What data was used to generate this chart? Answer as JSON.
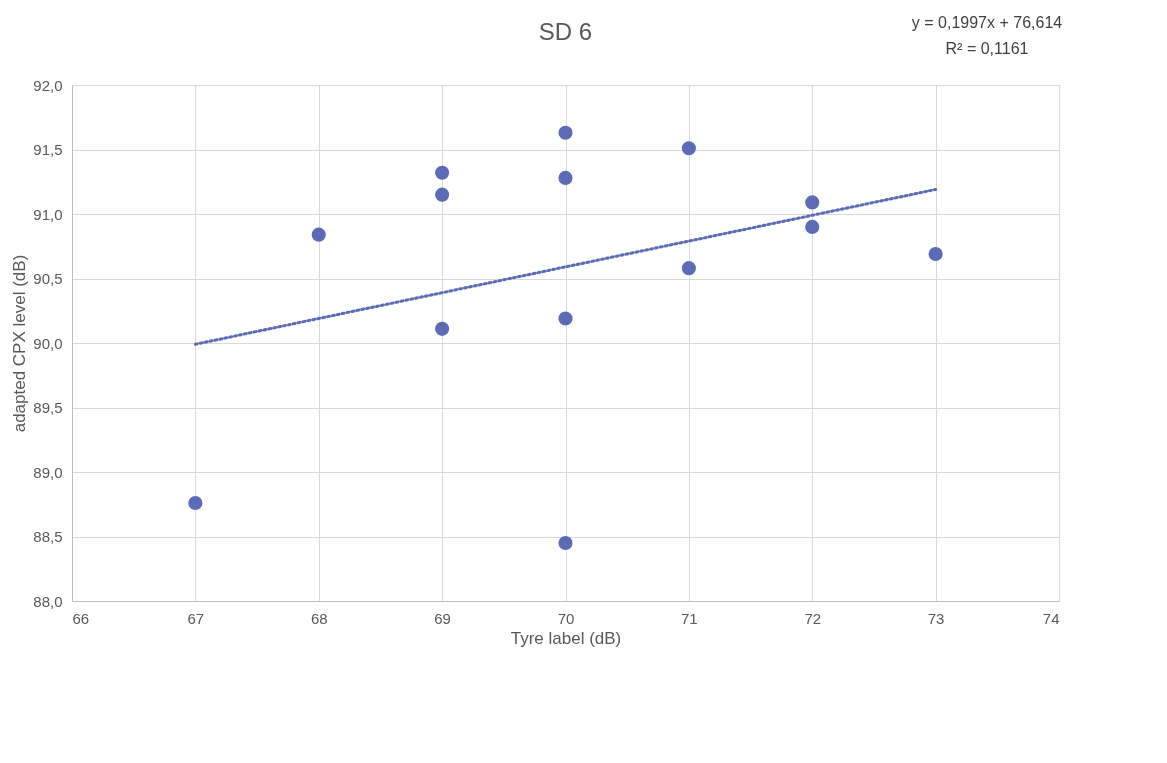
{
  "chart_data": {
    "type": "scatter",
    "title": "SD 6",
    "xlabel": "Tyre label (dB)",
    "ylabel": "adapted CPX level (dB)",
    "annotations": [
      "y = 0,1997x + 76,614",
      "R² = 0,1161"
    ],
    "xlim": [
      66,
      74
    ],
    "xticks": [
      66,
      67,
      68,
      69,
      70,
      71,
      72,
      73,
      74
    ],
    "ylim": [
      88,
      92
    ],
    "yticks": [
      {
        "value": 88,
        "label": "88,0"
      },
      {
        "value": 88.5,
        "label": "88,5"
      },
      {
        "value": 89,
        "label": "89,0"
      },
      {
        "value": 89.5,
        "label": "89,5"
      },
      {
        "value": 90,
        "label": "90,0"
      },
      {
        "value": 90.5,
        "label": "90,5"
      },
      {
        "value": 91,
        "label": "91,0"
      },
      {
        "value": 91.5,
        "label": "91,5"
      },
      {
        "value": 92,
        "label": "92,0"
      }
    ],
    "grid": true,
    "legend": false,
    "series": [
      {
        "type": "scatter",
        "color": "#5b6bb5",
        "marker": "circle",
        "x": [
          67,
          68,
          69,
          69,
          69,
          70,
          70,
          70,
          70,
          71,
          71,
          72,
          72,
          73
        ],
        "values": [
          88.76,
          90.84,
          91.32,
          91.15,
          90.11,
          91.63,
          91.28,
          90.19,
          88.45,
          91.51,
          90.58,
          91.09,
          90.9,
          90.69
        ]
      },
      {
        "type": "line",
        "color": "#5b6bb5",
        "line_style": "dotted",
        "x": [
          67,
          73
        ],
        "values": [
          89.99,
          91.19
        ]
      }
    ]
  }
}
